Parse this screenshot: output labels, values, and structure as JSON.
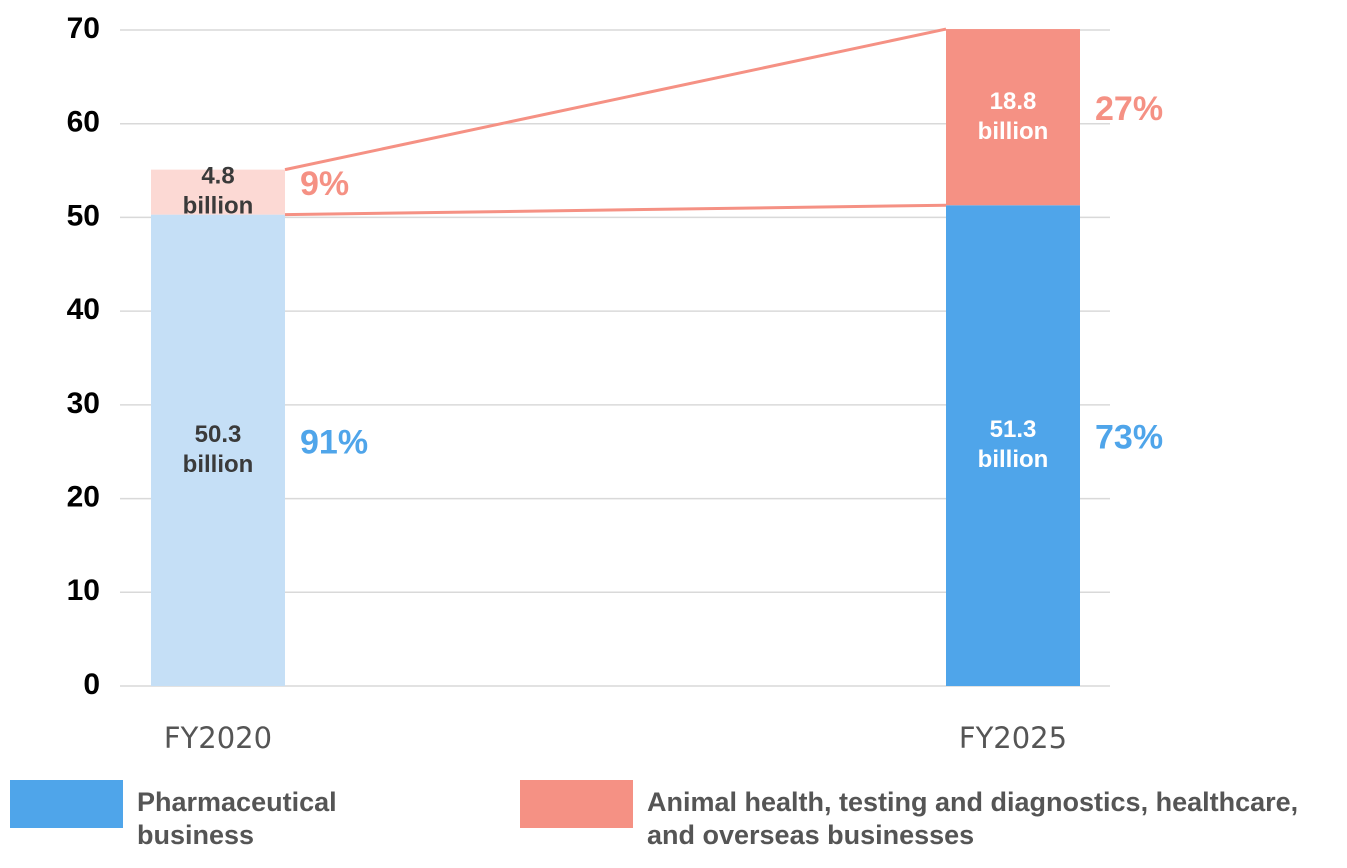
{
  "chart_data": {
    "type": "stacked_bar",
    "categories": [
      "FY2020",
      "FY2025"
    ],
    "series": [
      {
        "name": "Pharmaceutical business",
        "color": "#4fa5ea",
        "colors": [
          "#c5dff6",
          "#4fa5ea"
        ],
        "values": [
          50.3,
          51.3
        ],
        "value_labels": [
          "50.3 billion",
          "51.3 billion"
        ],
        "share_labels": [
          "91%",
          "73%"
        ]
      },
      {
        "name": "Animal health, testing and diagnostics, healthcare, and overseas businesses",
        "color": "#f59184",
        "colors": [
          "#fcd9d4",
          "#f59184"
        ],
        "values": [
          4.8,
          18.8
        ],
        "value_labels": [
          "4.8 billion",
          "18.8 billion"
        ],
        "share_labels": [
          "9%",
          "27%"
        ]
      }
    ],
    "ylim": [
      0,
      70
    ],
    "yticks": [
      0,
      10,
      20,
      30,
      40,
      50,
      60,
      70
    ],
    "grid": true
  }
}
